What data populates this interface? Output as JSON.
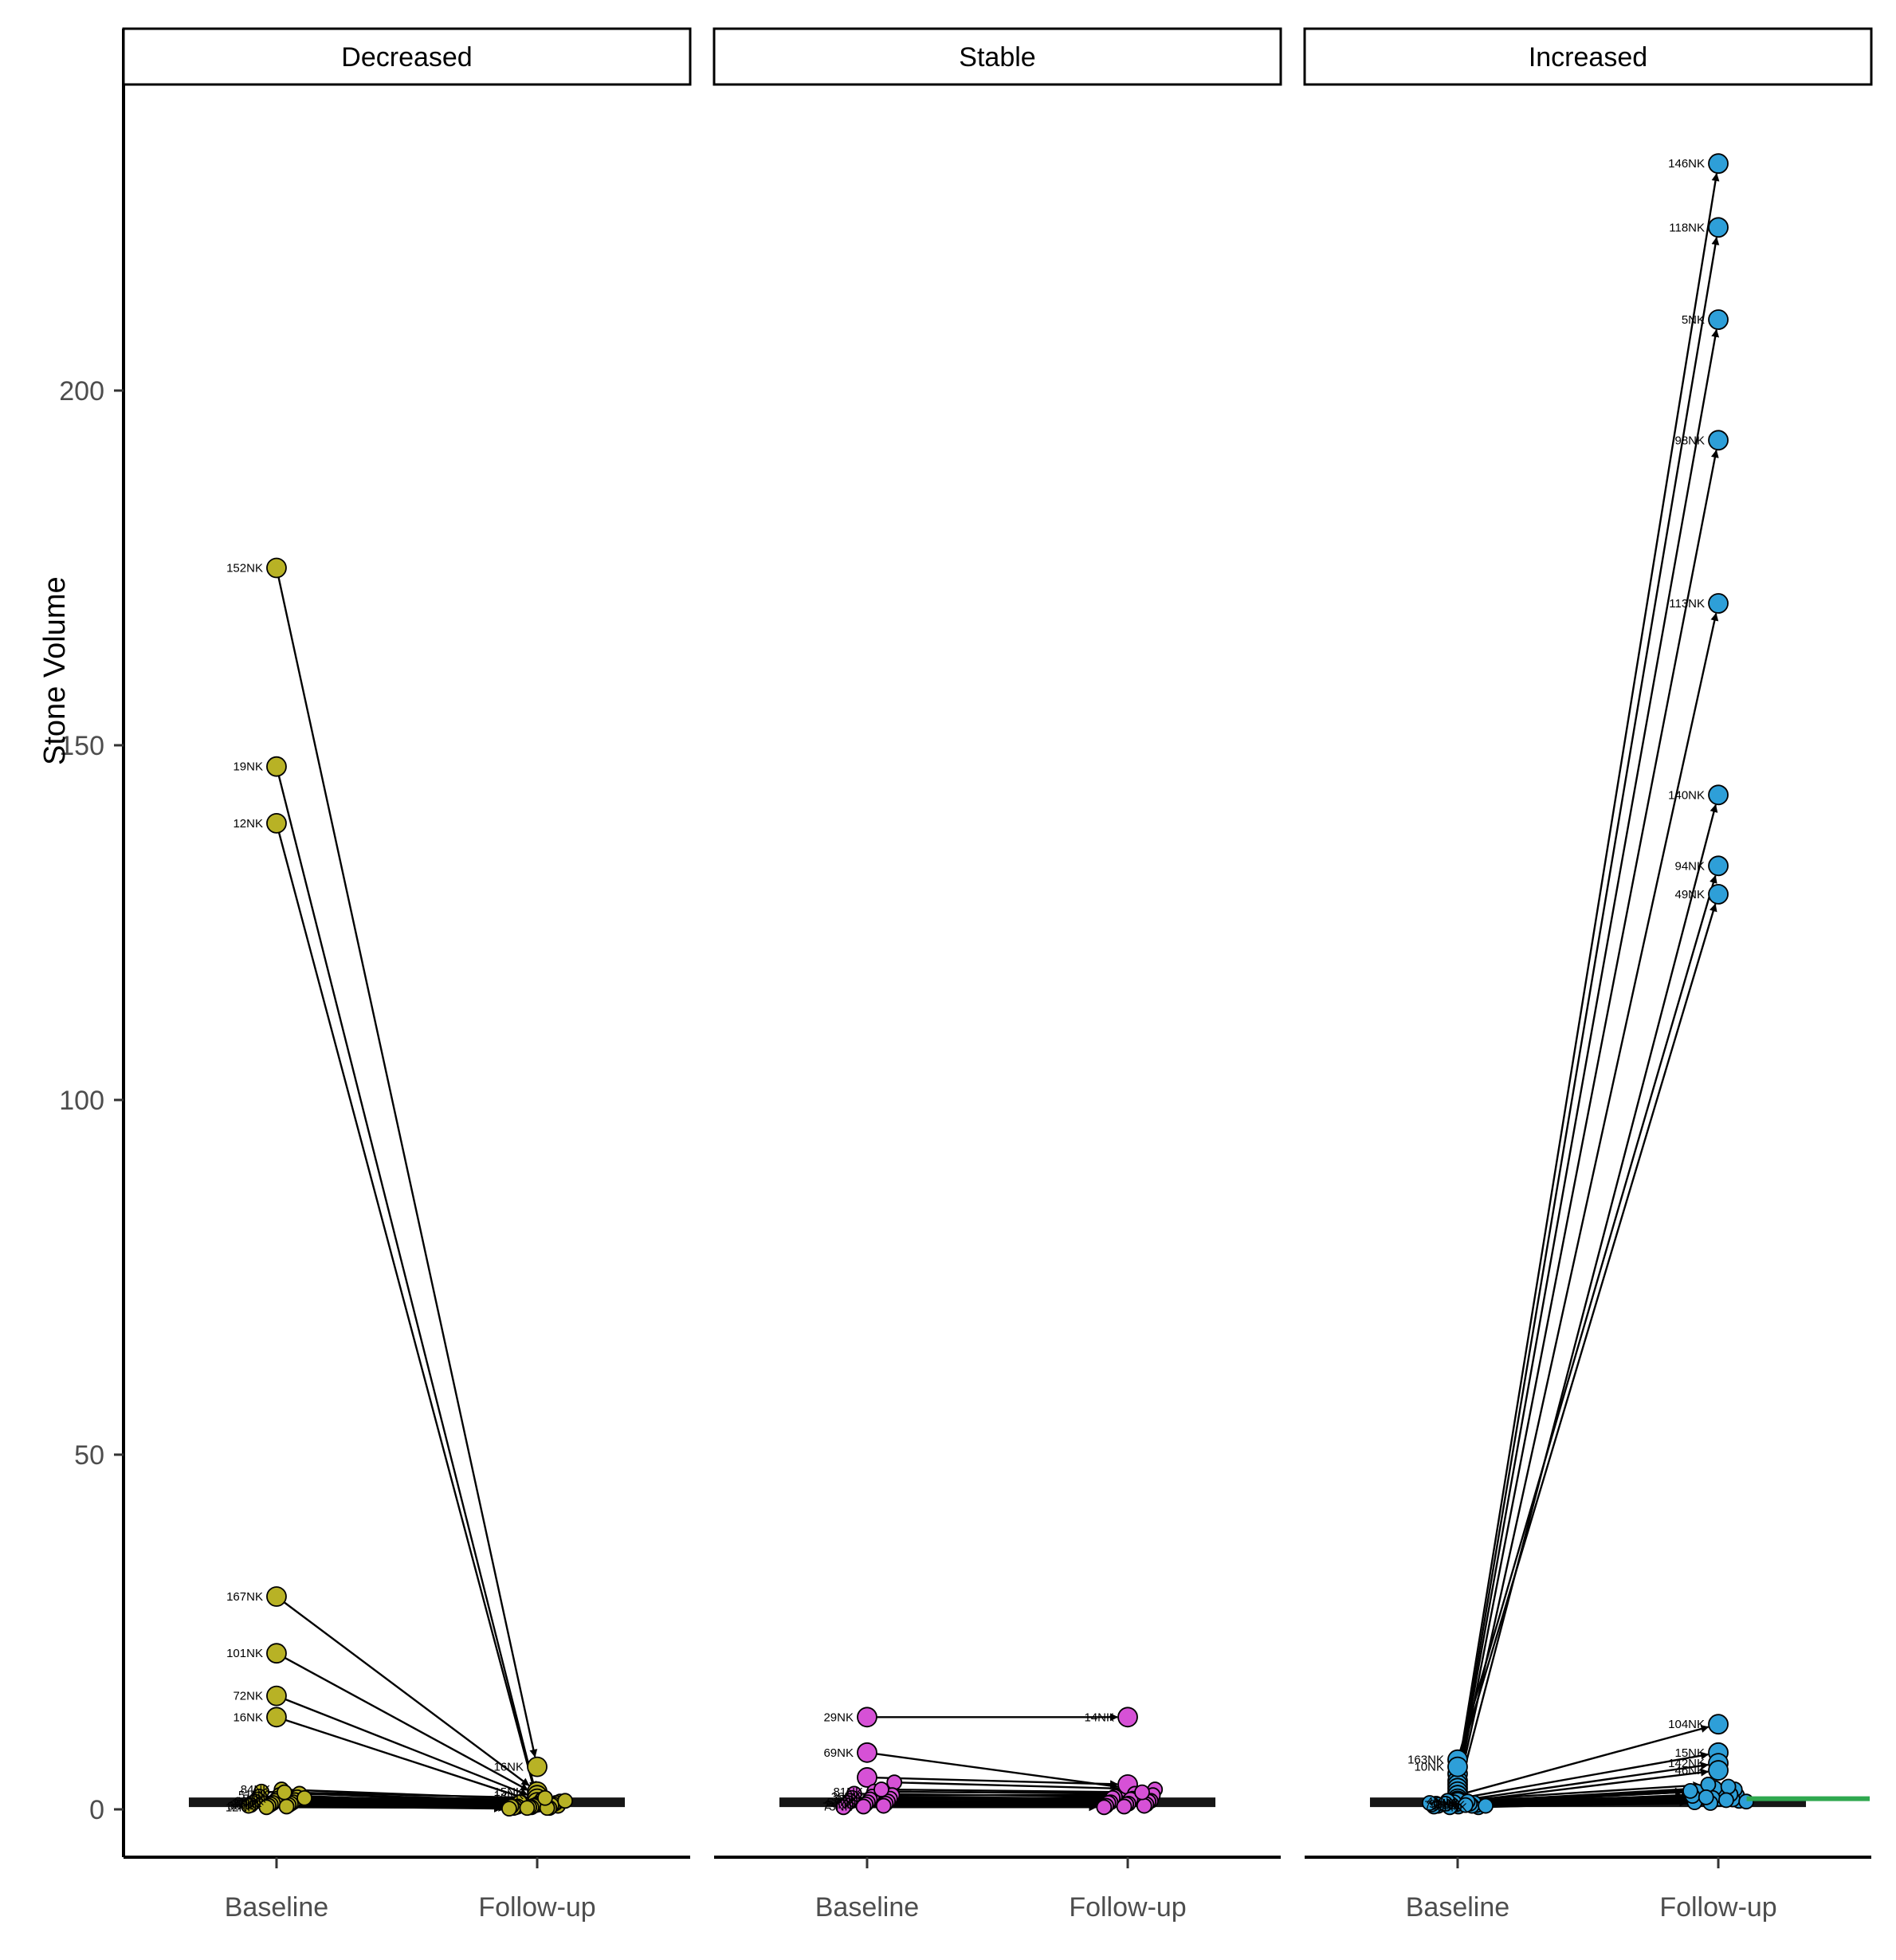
{
  "chart_data": {
    "type": "slope",
    "title": "",
    "ylabel": "Stone Volume",
    "x_categories": [
      "Baseline",
      "Follow-up"
    ],
    "yticks": [
      0,
      50,
      100,
      150,
      200
    ],
    "ylim": [
      -7,
      243
    ],
    "grid": false,
    "legend": "none",
    "zero_band": {
      "y": 1,
      "color": "#161616"
    },
    "annotations": [
      {
        "panel": "Increased",
        "y": 1.5,
        "color": "#2fa84f",
        "note": "green horizontal segment at right edge of Increased panel"
      }
    ],
    "panels": [
      {
        "label": "Decreased",
        "color": "#b8b225",
        "pairs": [
          [
            175,
            6,
            "152NK",
            "16NK"
          ],
          [
            147,
            1.5,
            "19NK",
            ""
          ],
          [
            139,
            1.2,
            "12NK",
            ""
          ],
          [
            30,
            2.5,
            "167NK",
            "15NK"
          ],
          [
            22,
            2,
            "101NK",
            "14NK"
          ],
          [
            16,
            1.5,
            "72NK",
            ""
          ],
          [
            13,
            1,
            "16NK",
            ""
          ],
          [
            2.8,
            1.4,
            "84NK",
            ""
          ],
          [
            2.5,
            0.9,
            "",
            ""
          ],
          [
            2.2,
            1.1,
            "",
            ""
          ],
          [
            2,
            0.7,
            "51NK",
            ""
          ],
          [
            1.8,
            1,
            "",
            ""
          ],
          [
            1.7,
            0.5,
            "",
            ""
          ],
          [
            1.5,
            0.8,
            "7NK",
            ""
          ],
          [
            1.4,
            0.4,
            "",
            ""
          ],
          [
            1.3,
            0.9,
            "",
            ""
          ],
          [
            1.2,
            0.6,
            "66NK",
            ""
          ],
          [
            1.1,
            0.3,
            "",
            ""
          ],
          [
            1,
            0.7,
            "",
            ""
          ],
          [
            0.9,
            0.5,
            "23NK",
            ""
          ],
          [
            0.9,
            0.2,
            "",
            ""
          ],
          [
            0.8,
            0.6,
            "",
            ""
          ],
          [
            0.7,
            0.3,
            "95NK",
            ""
          ],
          [
            0.6,
            0.4,
            "",
            ""
          ],
          [
            0.6,
            0.2,
            "",
            ""
          ],
          [
            0.5,
            0.3,
            "38NK",
            ""
          ],
          [
            0.5,
            0.1,
            "",
            ""
          ],
          [
            0.4,
            0.2,
            "",
            ""
          ],
          [
            0.3,
            0.2,
            "12NK",
            ""
          ],
          [
            1.6,
            1.2,
            "",
            ""
          ],
          [
            2.4,
            1.6,
            "",
            ""
          ]
        ]
      },
      {
        "label": "Stable",
        "color": "#d651d6",
        "pairs": [
          [
            13,
            13,
            "29NK",
            "14NK"
          ],
          [
            8,
            3,
            "69NK",
            ""
          ],
          [
            4.5,
            3.5,
            "",
            ""
          ],
          [
            3.8,
            2.8,
            "",
            ""
          ],
          [
            2.5,
            2.2,
            "81NK",
            ""
          ],
          [
            2.2,
            1.8,
            "",
            ""
          ],
          [
            2,
            2,
            "",
            ""
          ],
          [
            1.8,
            1.5,
            "36NK",
            ""
          ],
          [
            1.6,
            1.6,
            "",
            ""
          ],
          [
            1.5,
            1.2,
            "",
            ""
          ],
          [
            1.4,
            1.4,
            "9NK",
            ""
          ],
          [
            1.2,
            1,
            "",
            ""
          ],
          [
            1.1,
            1.1,
            "",
            ""
          ],
          [
            1,
            0.8,
            "57NK",
            ""
          ],
          [
            0.9,
            0.9,
            "",
            ""
          ],
          [
            0.8,
            0.7,
            "",
            ""
          ],
          [
            0.7,
            0.7,
            "24NK",
            ""
          ],
          [
            0.6,
            0.5,
            "",
            ""
          ],
          [
            0.5,
            0.5,
            "",
            ""
          ],
          [
            0.4,
            0.4,
            "73NK",
            ""
          ],
          [
            0.3,
            0.3,
            "",
            ""
          ],
          [
            2.8,
            2.4,
            "",
            ""
          ]
        ]
      },
      {
        "label": "Increased",
        "color": "#2e9fd8",
        "pairs": [
          [
            5,
            232,
            "",
            "146NK"
          ],
          [
            4,
            223,
            "",
            "118NK"
          ],
          [
            3.5,
            210,
            "",
            "5NK"
          ],
          [
            3,
            193,
            "",
            "98NK"
          ],
          [
            2.5,
            170,
            "",
            "113NK"
          ],
          [
            2,
            143,
            "",
            "140NK"
          ],
          [
            7,
            133,
            "163NK",
            "94NK"
          ],
          [
            6,
            129,
            "10NK",
            "49NK"
          ],
          [
            2,
            12,
            "",
            "104NK"
          ],
          [
            1.5,
            8,
            "",
            "15NK"
          ],
          [
            1.2,
            6.5,
            "",
            "142NK"
          ],
          [
            1,
            5.5,
            "",
            "46NK"
          ],
          [
            0.3,
            1.2,
            "88NK",
            ""
          ],
          [
            0.4,
            1.5,
            "",
            ""
          ],
          [
            0.5,
            1.8,
            "",
            ""
          ],
          [
            0.6,
            2,
            "31NK",
            ""
          ],
          [
            0.7,
            2.2,
            "",
            ""
          ],
          [
            0.8,
            2.5,
            "",
            ""
          ],
          [
            0.9,
            2.8,
            "64NK",
            ""
          ],
          [
            1,
            3,
            "",
            ""
          ],
          [
            0.4,
            1,
            "",
            ""
          ],
          [
            0.5,
            1.4,
            "17NK",
            ""
          ],
          [
            0.6,
            1.6,
            "",
            ""
          ],
          [
            0.7,
            1.9,
            "",
            ""
          ],
          [
            0.8,
            2.1,
            "92NK",
            ""
          ],
          [
            0.3,
            0.9,
            "",
            ""
          ],
          [
            0.9,
            2.6,
            "",
            ""
          ],
          [
            1.1,
            3.2,
            "45NK",
            ""
          ],
          [
            1.2,
            3.5,
            "",
            ""
          ],
          [
            0.5,
            1.1,
            "",
            ""
          ],
          [
            0.6,
            1.3,
            "70NK",
            ""
          ],
          [
            0.8,
            1.7,
            "",
            ""
          ]
        ]
      }
    ],
    "colors": {
      "decreased_points": "#b8b225",
      "stable_points": "#d651d6",
      "increased_points": "#2e9fd8",
      "lines": "#000000",
      "axis_text": "#4d4d4d",
      "zero_band": "#161616",
      "annotation_green": "#2fa84f"
    }
  }
}
